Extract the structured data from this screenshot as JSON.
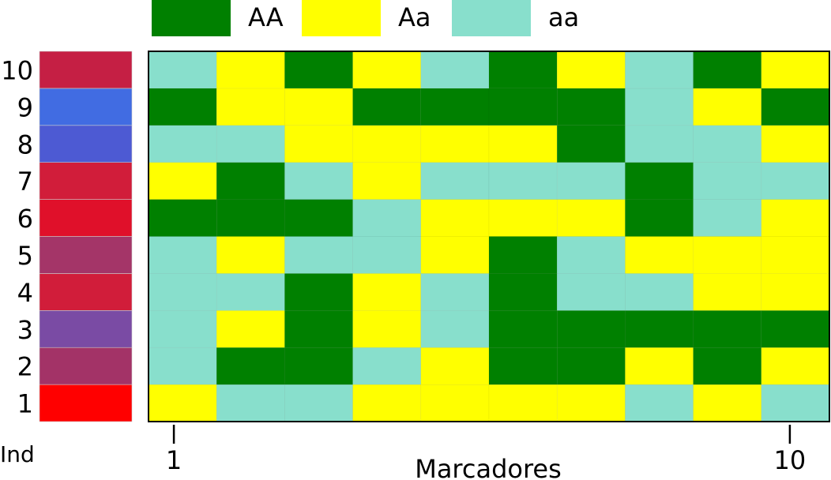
{
  "chart_data": {
    "type": "heatmap",
    "legend": {
      "position": "top",
      "entries": [
        {
          "label": "AA",
          "value": 2,
          "color": "#008000"
        },
        {
          "label": "Aa",
          "value": 1,
          "color": "#ffff00"
        },
        {
          "label": "aa",
          "value": 0,
          "color": "#88dfcc"
        }
      ]
    },
    "xlabel": "Marcadores",
    "x_ticks": [
      "1",
      "10"
    ],
    "row_axis_label": "Ind",
    "rows": [
      "1",
      "2",
      "3",
      "4",
      "5",
      "6",
      "7",
      "8",
      "9",
      "10"
    ],
    "row_colors": [
      "#ff0000",
      "#a33367",
      "#7a4ba4",
      "#d11d3a",
      "#a43568",
      "#e0102a",
      "#d11d3a",
      "#4d5ad3",
      "#416ce2",
      "#c51f44"
    ],
    "genotypes": [
      [
        1,
        0,
        0,
        1,
        1,
        1,
        1,
        0,
        1,
        0
      ],
      [
        0,
        2,
        2,
        0,
        1,
        2,
        2,
        1,
        2,
        1
      ],
      [
        0,
        1,
        2,
        1,
        0,
        2,
        2,
        2,
        2,
        2
      ],
      [
        0,
        0,
        2,
        1,
        0,
        2,
        0,
        0,
        1,
        1
      ],
      [
        0,
        1,
        0,
        0,
        1,
        2,
        0,
        1,
        1,
        1
      ],
      [
        2,
        2,
        2,
        0,
        1,
        1,
        1,
        2,
        0,
        1
      ],
      [
        1,
        2,
        0,
        1,
        0,
        0,
        0,
        2,
        0,
        0
      ],
      [
        0,
        0,
        1,
        1,
        1,
        1,
        2,
        0,
        0,
        1
      ],
      [
        2,
        1,
        1,
        2,
        2,
        2,
        2,
        0,
        1,
        2
      ],
      [
        0,
        1,
        2,
        1,
        0,
        2,
        1,
        0,
        2,
        1
      ]
    ]
  }
}
